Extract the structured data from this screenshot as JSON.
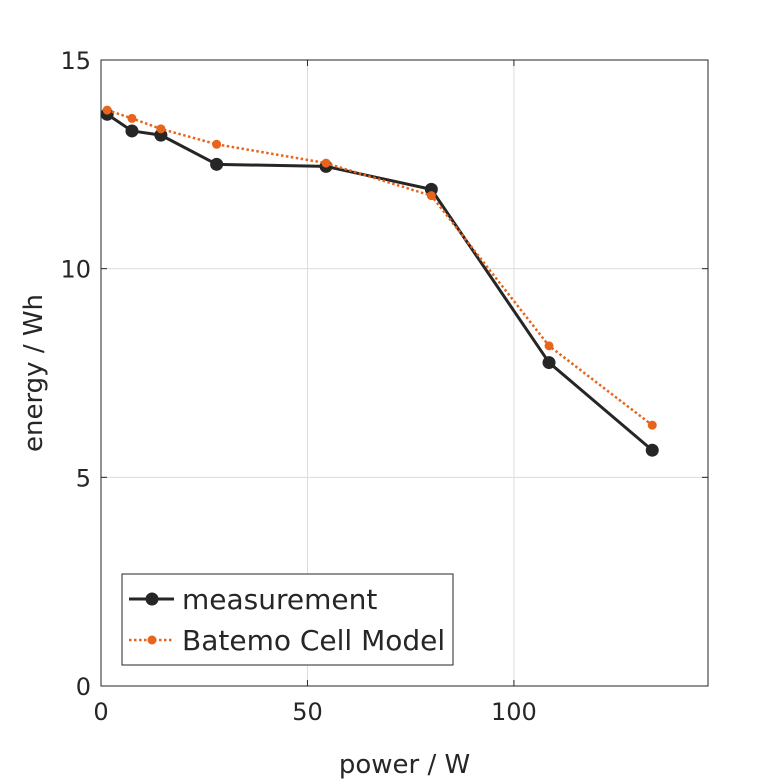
{
  "chart_data": {
    "type": "line",
    "xlabel": "power / W",
    "ylabel": "energy / Wh",
    "xlim": [
      0,
      147
    ],
    "ylim": [
      0,
      15
    ],
    "xticks": [
      0,
      50,
      100
    ],
    "yticks": [
      0,
      5,
      10,
      15
    ],
    "grid": true,
    "legend_position": "bottom-left",
    "series": [
      {
        "name": "measurement",
        "color": "#262626",
        "line_style": "solid",
        "marker": "circle",
        "x": [
          1.5,
          7.5,
          14.5,
          28,
          54.5,
          80,
          108.5,
          133.5
        ],
        "y": [
          13.7,
          13.3,
          13.2,
          12.5,
          12.45,
          11.9,
          7.75,
          5.65
        ]
      },
      {
        "name": "Batemo Cell Model",
        "color": "#e8641c",
        "line_style": "dotted",
        "marker": "circle",
        "x": [
          1.5,
          7.5,
          14.5,
          28,
          54.5,
          80,
          108.5,
          133.5
        ],
        "y": [
          13.8,
          13.6,
          13.35,
          12.98,
          12.53,
          11.75,
          8.15,
          6.25
        ]
      }
    ]
  }
}
